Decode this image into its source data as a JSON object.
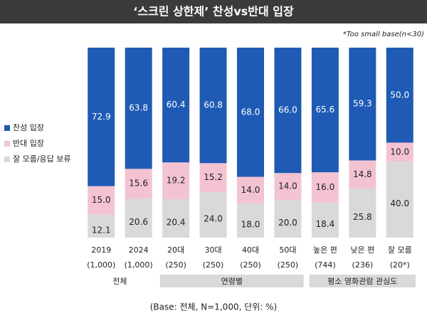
{
  "chart_data": {
    "type": "stacked_bar",
    "title": "‘스크린 상한제’ 찬성vs반대 입장",
    "note": "*Too small base(n<30)",
    "base_note": "(Base: 전체, N=1,000, 단위: %)",
    "categories": [
      "2019",
      "2024",
      "20대",
      "30대",
      "40대",
      "50대",
      "높은 편",
      "낮은 편",
      "잘 모름"
    ],
    "sample_sizes": [
      "(1,000)",
      "(1,000)",
      "(250)",
      "(250)",
      "(250)",
      "(250)",
      "(744)",
      "(236)",
      "(20*)"
    ],
    "groups": [
      "전체",
      "연령별",
      "평소 영화관람 관심도"
    ],
    "series": [
      {
        "name": "찬성 입장",
        "color": "#1f5bb5",
        "values": [
          72.9,
          63.8,
          60.4,
          60.8,
          68.0,
          66.0,
          65.6,
          59.3,
          50.0
        ],
        "value_labels": [
          "72.9",
          "63.8",
          "60.4",
          "60.8",
          "68.0",
          "66.0",
          "65.6",
          "59.3",
          "50.0"
        ]
      },
      {
        "name": "반대 입장",
        "color": "#f3c3d2",
        "values": [
          15.0,
          15.6,
          19.2,
          15.2,
          14.0,
          14.0,
          16.0,
          14.8,
          10.0
        ],
        "value_labels": [
          "15.0",
          "15.6",
          "19.2",
          "15.2",
          "14.0",
          "14.0",
          "16.0",
          "14.8",
          "10.0"
        ]
      },
      {
        "name": "잘 모름/응답 보류",
        "color": "#d9d9d9",
        "values": [
          12.1,
          20.6,
          20.4,
          24.0,
          18.0,
          20.0,
          18.4,
          25.8,
          40.0
        ],
        "value_labels": [
          "12.1",
          "20.6",
          "20.4",
          "24.0",
          "18.0",
          "20.0",
          "18.4",
          "25.8",
          "40.0"
        ]
      }
    ]
  }
}
